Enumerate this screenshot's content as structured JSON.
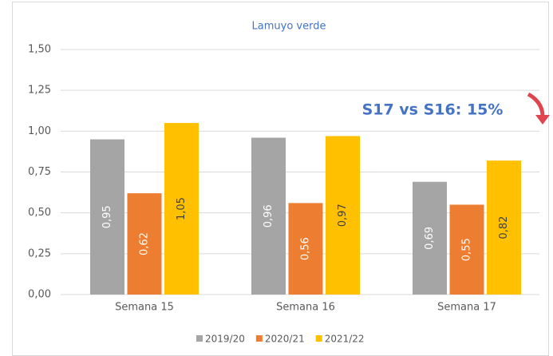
{
  "chart_data": {
    "type": "bar",
    "title": "Lamuyo verde",
    "categories": [
      "Semana 15",
      "Semana 16",
      "Semana 17"
    ],
    "series": [
      {
        "name": "2019/20",
        "color": "#a5a5a5",
        "values": [
          0.95,
          0.96,
          0.69
        ],
        "value_labels": [
          "0,95",
          "0,96",
          "0,69"
        ]
      },
      {
        "name": "2020/21",
        "color": "#ed7d31",
        "values": [
          0.62,
          0.56,
          0.55
        ],
        "value_labels": [
          "0,62",
          "0,56",
          "0,55"
        ]
      },
      {
        "name": "2021/22",
        "color": "#ffc000",
        "values": [
          1.05,
          0.97,
          0.82
        ],
        "value_labels": [
          "1,05",
          "0,97",
          "0,82"
        ]
      }
    ],
    "ylim": [
      0,
      1.5
    ],
    "yticks": [
      {
        "value": 0,
        "label": "0,00"
      },
      {
        "value": 0.25,
        "label": "0,25"
      },
      {
        "value": 0.5,
        "label": "0,50"
      },
      {
        "value": 0.75,
        "label": "0,75"
      },
      {
        "value": 1,
        "label": "1,00"
      },
      {
        "value": 1.25,
        "label": "1,25"
      },
      {
        "value": 1.5,
        "label": "1,50"
      }
    ],
    "grid": true,
    "legend": "bottom",
    "annotation": "S17 vs S16: 15%"
  }
}
